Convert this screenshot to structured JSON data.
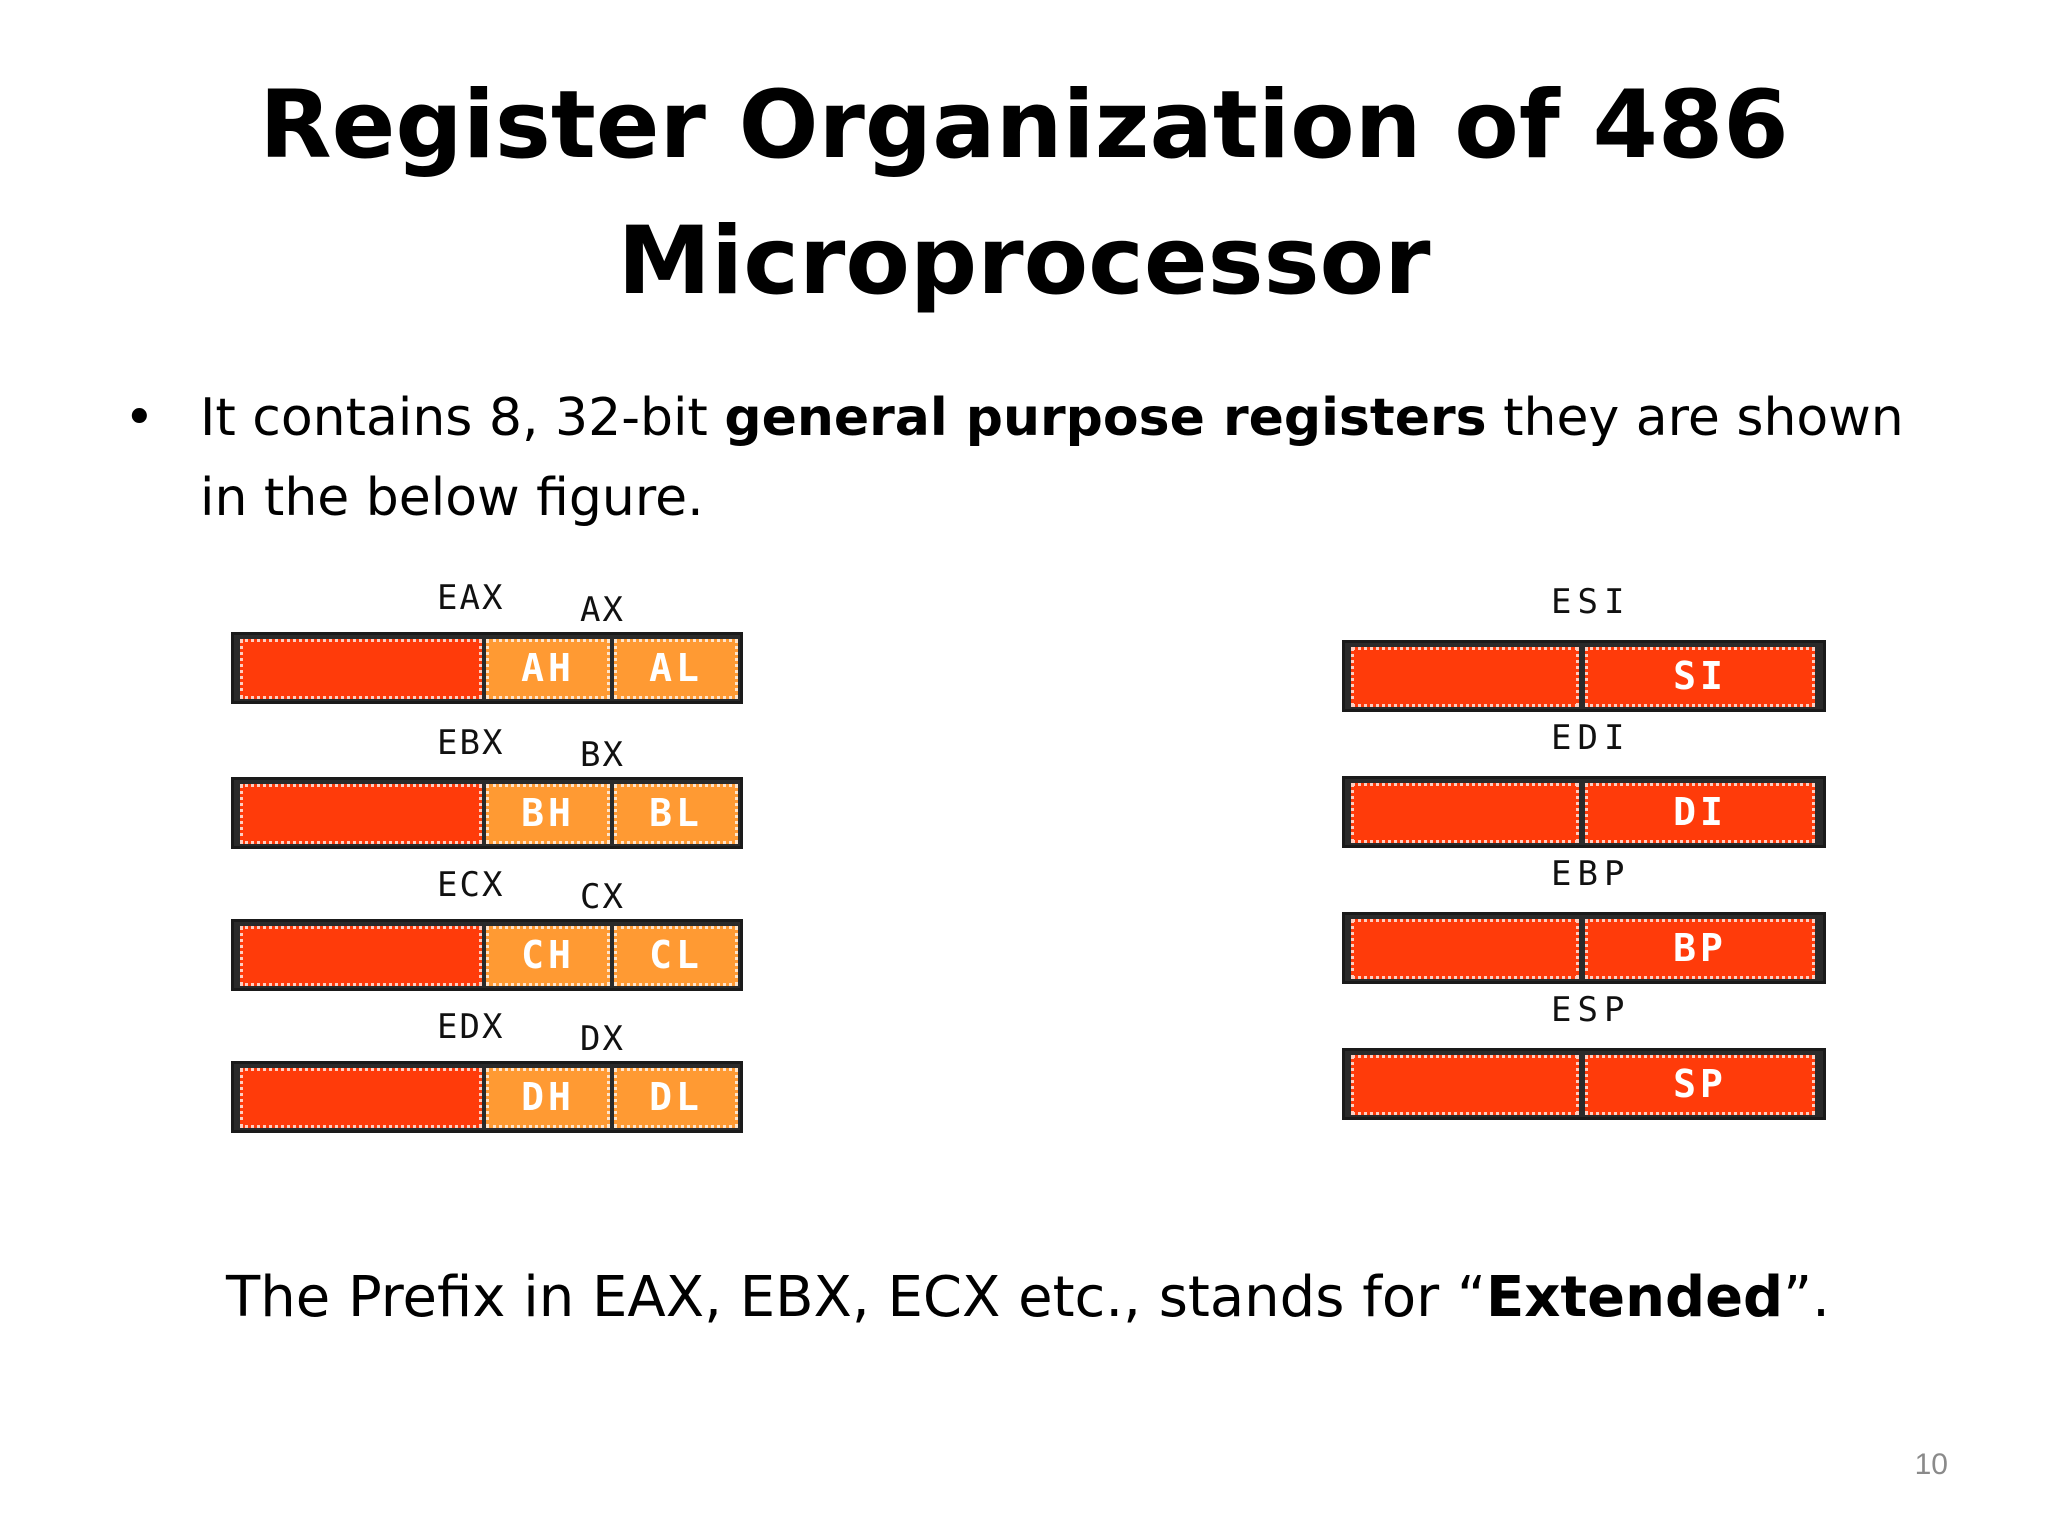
{
  "slide": {
    "title_line1": "Register Organization of 486",
    "title_line2": "Microprocessor",
    "bullet": {
      "pre": "It contains 8, 32-bit ",
      "bold": "general purpose registers",
      "post": " they are shown in the below figure."
    },
    "note": {
      "pre": "The Prefix in EAX, EBX, ECX etc., stands for “",
      "bold": "Extended",
      "post": "”."
    },
    "page_number": "10"
  },
  "registers_left": [
    {
      "name": "EAX",
      "sub": "AX",
      "high": "AH",
      "low": "AL"
    },
    {
      "name": "EBX",
      "sub": "BX",
      "high": "BH",
      "low": "BL"
    },
    {
      "name": "ECX",
      "sub": "CX",
      "high": "CH",
      "low": "CL"
    },
    {
      "name": "EDX",
      "sub": "DX",
      "high": "DH",
      "low": "DL"
    }
  ],
  "registers_right": [
    {
      "name": "ESI",
      "low": "SI"
    },
    {
      "name": "EDI",
      "low": "DI"
    },
    {
      "name": "EBP",
      "low": "BP"
    },
    {
      "name": "ESP",
      "low": "SP"
    }
  ],
  "colors": {
    "upper_segment": "#ff3b0a",
    "byte_segment": "#ff9a33",
    "frame": "#2a2a2a"
  }
}
